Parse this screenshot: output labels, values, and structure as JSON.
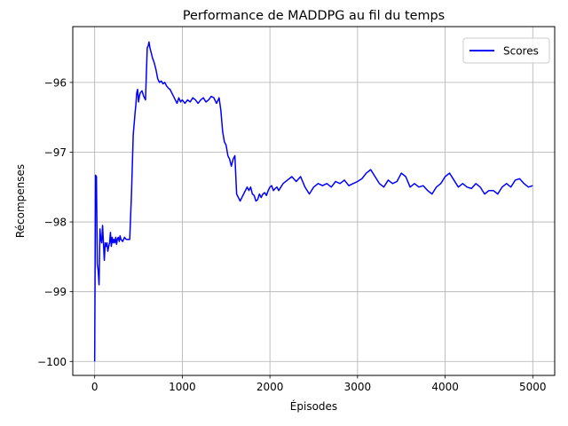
{
  "chart_data": {
    "type": "line",
    "title": "Performance de MADDPG au fil du temps",
    "xlabel": "Épisodes",
    "ylabel": "Récompenses",
    "xlim": [
      -250,
      5250
    ],
    "ylim": [
      -100.2,
      -95.2
    ],
    "xticks": [
      0,
      1000,
      2000,
      3000,
      4000,
      5000
    ],
    "xtick_labels": [
      "0",
      "1000",
      "2000",
      "3000",
      "4000",
      "5000"
    ],
    "yticks": [
      -100,
      -99,
      -98,
      -97,
      -96
    ],
    "ytick_labels": [
      "−100",
      "−99",
      "−98",
      "−97",
      "−96"
    ],
    "grid": true,
    "legend_position": "top-right",
    "series": [
      {
        "name": "Scores",
        "color": "#0000ff",
        "x": [
          0,
          10,
          20,
          30,
          40,
          50,
          60,
          70,
          80,
          90,
          100,
          110,
          120,
          130,
          140,
          150,
          160,
          170,
          180,
          190,
          200,
          210,
          220,
          230,
          240,
          250,
          260,
          270,
          280,
          290,
          300,
          320,
          340,
          360,
          380,
          400,
          420,
          440,
          450,
          460,
          470,
          480,
          490,
          500,
          510,
          520,
          540,
          560,
          580,
          600,
          610,
          620,
          630,
          640,
          660,
          680,
          700,
          720,
          740,
          760,
          780,
          800,
          820,
          840,
          860,
          880,
          900,
          920,
          940,
          960,
          980,
          1000,
          1030,
          1060,
          1090,
          1120,
          1150,
          1180,
          1210,
          1240,
          1270,
          1300,
          1330,
          1360,
          1390,
          1410,
          1420,
          1440,
          1460,
          1480,
          1500,
          1520,
          1540,
          1560,
          1580,
          1600,
          1620,
          1640,
          1660,
          1680,
          1700,
          1720,
          1740,
          1760,
          1780,
          1800,
          1820,
          1840,
          1860,
          1880,
          1900,
          1920,
          1940,
          1960,
          1980,
          2000,
          2020,
          2040,
          2060,
          2080,
          2100,
          2150,
          2200,
          2250,
          2300,
          2350,
          2400,
          2450,
          2500,
          2550,
          2600,
          2650,
          2700,
          2750,
          2800,
          2850,
          2900,
          2950,
          3000,
          3050,
          3100,
          3150,
          3200,
          3250,
          3300,
          3350,
          3400,
          3450,
          3500,
          3550,
          3600,
          3650,
          3700,
          3750,
          3800,
          3850,
          3900,
          3950,
          4000,
          4050,
          4100,
          4150,
          4200,
          4250,
          4300,
          4350,
          4400,
          4450,
          4500,
          4550,
          4600,
          4650,
          4700,
          4750,
          4800,
          4850,
          4900,
          4950,
          5000
        ],
        "y": [
          -100.0,
          -97.33,
          -97.35,
          -98.6,
          -98.7,
          -98.9,
          -98.1,
          -98.25,
          -98.3,
          -98.05,
          -98.3,
          -98.55,
          -98.3,
          -98.35,
          -98.3,
          -98.42,
          -98.35,
          -98.3,
          -98.15,
          -98.35,
          -98.22,
          -98.3,
          -98.25,
          -98.3,
          -98.22,
          -98.32,
          -98.24,
          -98.22,
          -98.28,
          -98.2,
          -98.25,
          -98.28,
          -98.22,
          -98.25,
          -98.25,
          -98.25,
          -97.6,
          -96.75,
          -96.6,
          -96.45,
          -96.32,
          -96.15,
          -96.1,
          -96.28,
          -96.2,
          -96.15,
          -96.12,
          -96.2,
          -96.25,
          -95.5,
          -95.48,
          -95.42,
          -95.5,
          -95.55,
          -95.65,
          -95.72,
          -95.82,
          -95.95,
          -96.0,
          -95.98,
          -96.02,
          -96.0,
          -96.05,
          -96.08,
          -96.1,
          -96.15,
          -96.2,
          -96.25,
          -96.3,
          -96.22,
          -96.28,
          -96.25,
          -96.3,
          -96.25,
          -96.28,
          -96.22,
          -96.25,
          -96.3,
          -96.25,
          -96.22,
          -96.28,
          -96.25,
          -96.2,
          -96.22,
          -96.3,
          -96.25,
          -96.22,
          -96.4,
          -96.7,
          -96.85,
          -96.9,
          -97.05,
          -97.1,
          -97.2,
          -97.1,
          -97.05,
          -97.6,
          -97.65,
          -97.7,
          -97.65,
          -97.6,
          -97.55,
          -97.5,
          -97.55,
          -97.5,
          -97.6,
          -97.62,
          -97.7,
          -97.68,
          -97.6,
          -97.65,
          -97.6,
          -97.58,
          -97.62,
          -97.55,
          -97.5,
          -97.48,
          -97.55,
          -97.52,
          -97.5,
          -97.55,
          -97.45,
          -97.4,
          -97.35,
          -97.42,
          -97.35,
          -97.5,
          -97.6,
          -97.5,
          -97.45,
          -97.48,
          -97.45,
          -97.5,
          -97.42,
          -97.45,
          -97.4,
          -97.48,
          -97.45,
          -97.42,
          -97.38,
          -97.3,
          -97.25,
          -97.35,
          -97.45,
          -97.5,
          -97.4,
          -97.45,
          -97.42,
          -97.3,
          -97.35,
          -97.5,
          -97.45,
          -97.5,
          -97.48,
          -97.55,
          -97.6,
          -97.5,
          -97.45,
          -97.35,
          -97.3,
          -97.4,
          -97.5,
          -97.45,
          -97.5,
          -97.52,
          -97.45,
          -97.5,
          -97.6,
          -97.55,
          -97.55,
          -97.6,
          -97.5,
          -97.45,
          -97.5,
          -97.4,
          -97.38,
          -97.45,
          -97.5,
          -97.48
        ]
      }
    ]
  }
}
